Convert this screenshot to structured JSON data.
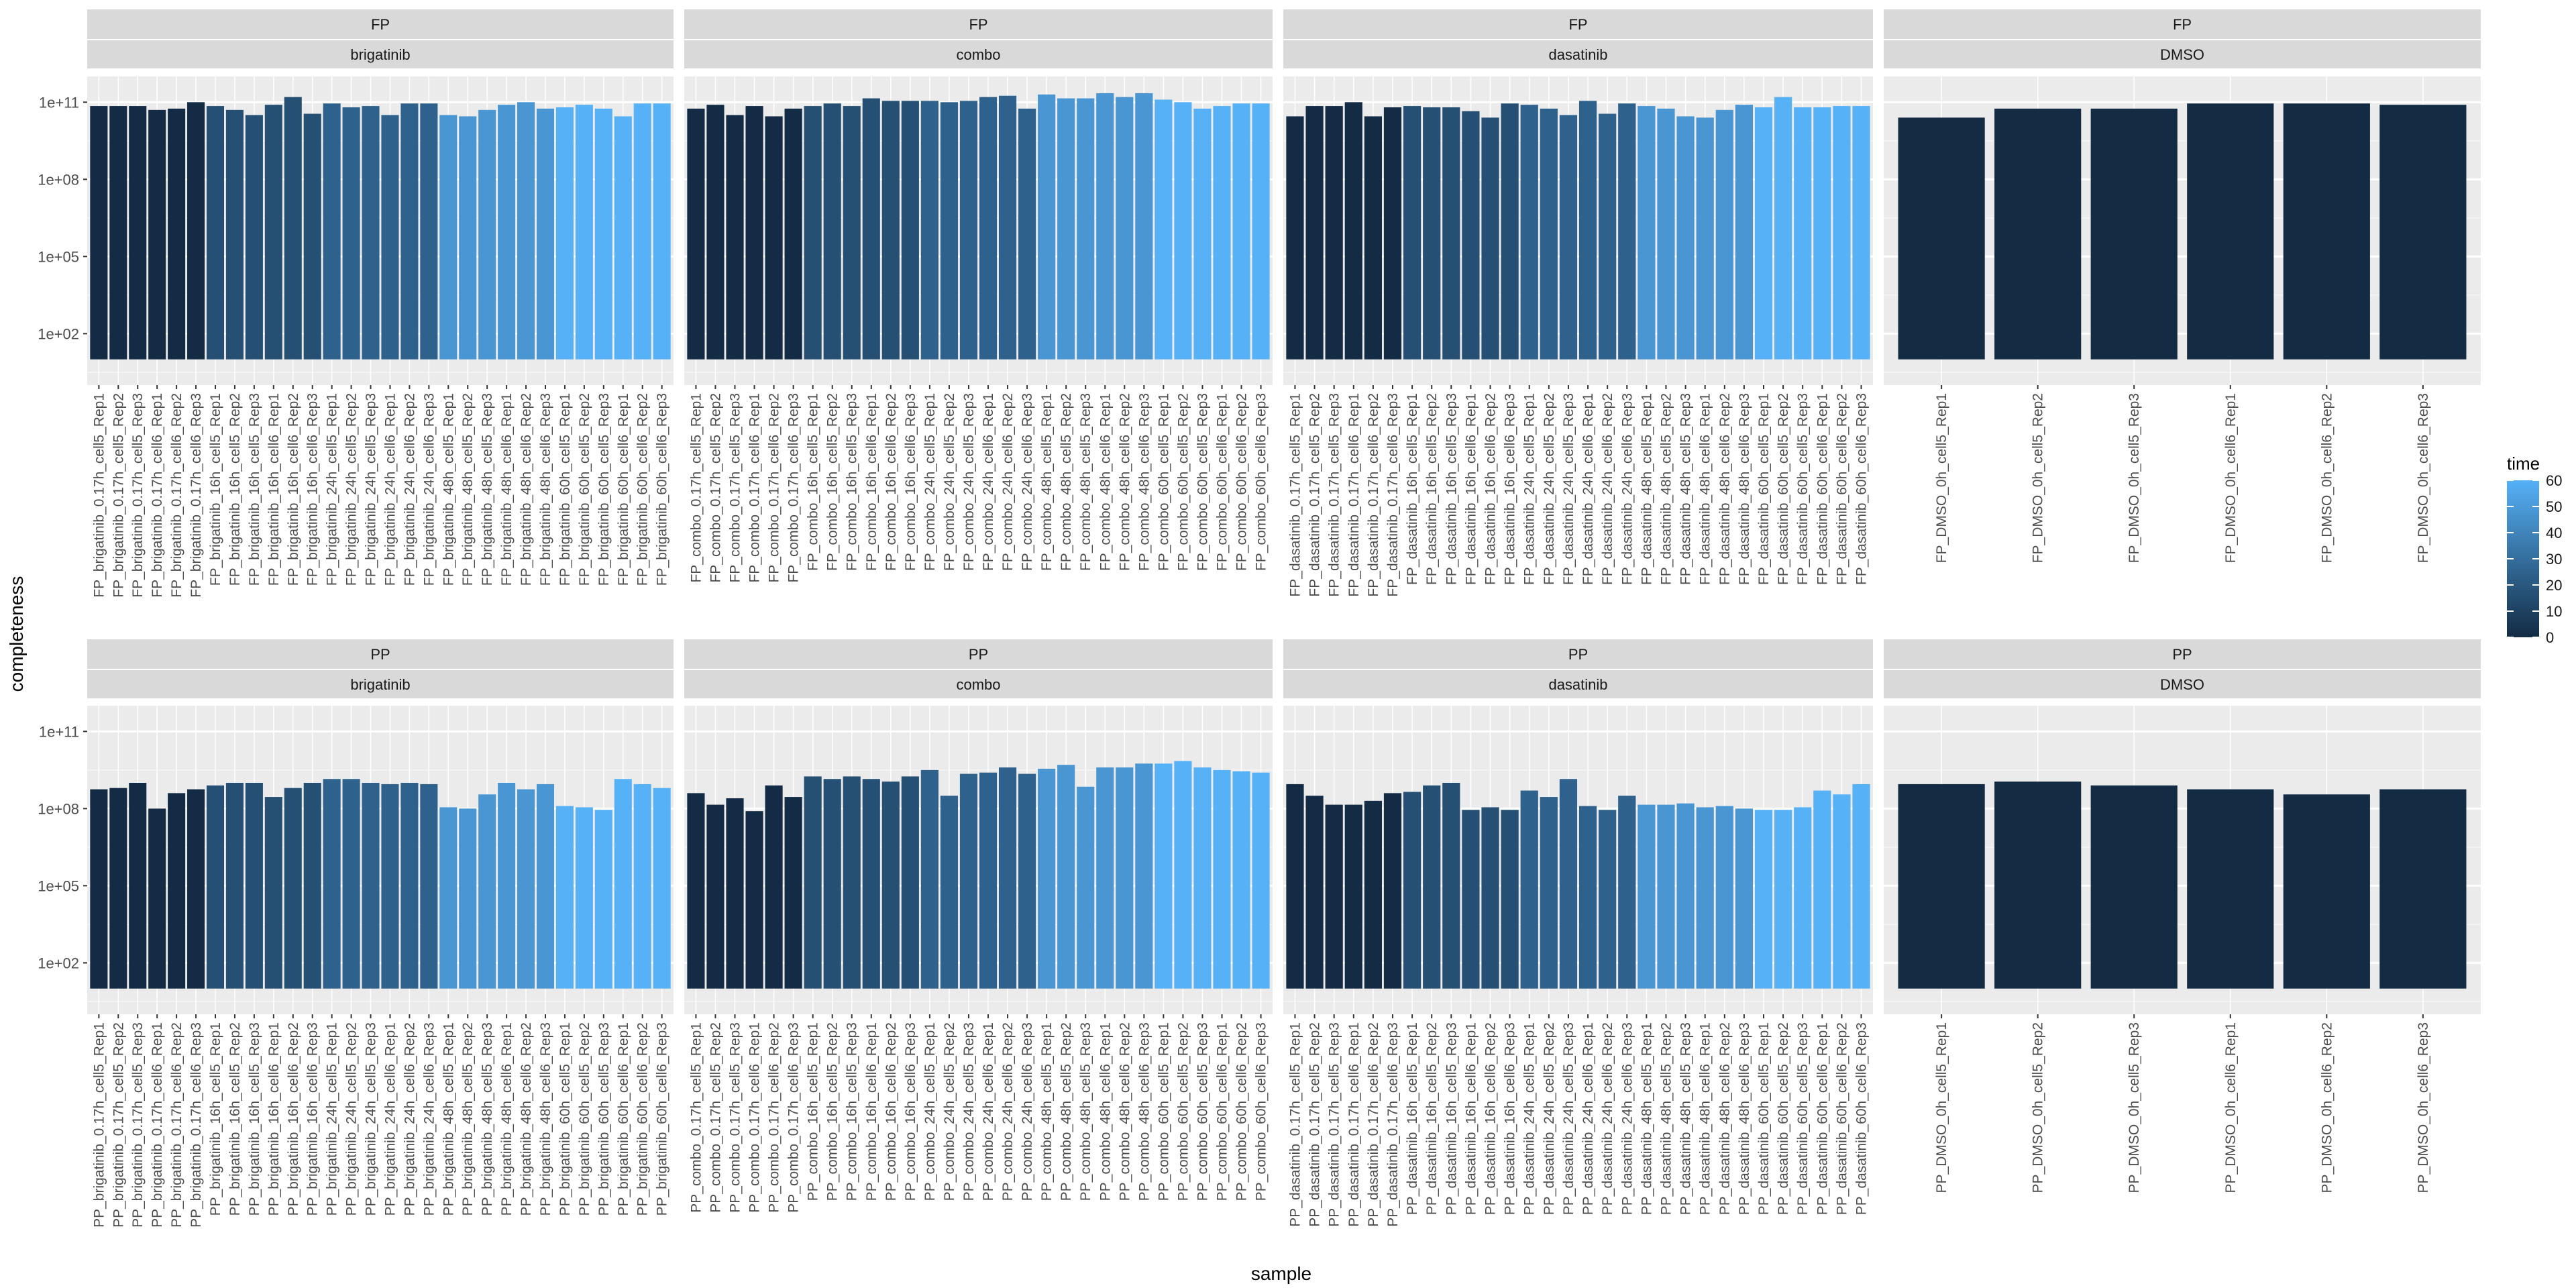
{
  "chart_data": {
    "type": "bar",
    "facet_rows": [
      "FP",
      "PP"
    ],
    "facet_cols": [
      "brigatinib",
      "combo",
      "dasatinib",
      "DMSO"
    ],
    "y_scale": "log10",
    "ylim_log10": [
      0,
      12
    ],
    "y_ticks": [
      {
        "label": "1e+02",
        "log10": 2
      },
      {
        "label": "1e+05",
        "log10": 5
      },
      {
        "label": "1e+08",
        "log10": 8
      },
      {
        "label": "1e+11",
        "log10": 11
      }
    ],
    "xlabel": "sample",
    "ylabel": "completeness",
    "legend": {
      "title": "time",
      "ticks": [
        "0",
        "10",
        "20",
        "30",
        "40",
        "50",
        "60"
      ],
      "range": [
        0,
        60
      ],
      "low_color": "#132b43",
      "high_color": "#56b1f7",
      "position": "right"
    },
    "panels": [
      {
        "row": "FP",
        "col": "brigatinib",
        "samples": [
          "FP_brigatinib_0.17h_cell5_Rep1",
          "FP_brigatinib_0.17h_cell5_Rep2",
          "FP_brigatinib_0.17h_cell5_Rep3",
          "FP_brigatinib_0.17h_cell6_Rep1",
          "FP_brigatinib_0.17h_cell6_Rep2",
          "FP_brigatinib_0.17h_cell6_Rep3",
          "FP_brigatinib_16h_cell5_Rep1",
          "FP_brigatinib_16h_cell5_Rep2",
          "FP_brigatinib_16h_cell5_Rep3",
          "FP_brigatinib_16h_cell6_Rep1",
          "FP_brigatinib_16h_cell6_Rep2",
          "FP_brigatinib_16h_cell6_Rep3",
          "FP_brigatinib_24h_cell5_Rep1",
          "FP_brigatinib_24h_cell5_Rep2",
          "FP_brigatinib_24h_cell5_Rep3",
          "FP_brigatinib_24h_cell6_Rep1",
          "FP_brigatinib_24h_cell6_Rep2",
          "FP_brigatinib_24h_cell6_Rep3",
          "FP_brigatinib_48h_cell5_Rep1",
          "FP_brigatinib_48h_cell5_Rep2",
          "FP_brigatinib_48h_cell5_Rep3",
          "FP_brigatinib_48h_cell6_Rep1",
          "FP_brigatinib_48h_cell6_Rep2",
          "FP_brigatinib_48h_cell6_Rep3",
          "FP_brigatinib_60h_cell5_Rep1",
          "FP_brigatinib_60h_cell5_Rep2",
          "FP_brigatinib_60h_cell5_Rep3",
          "FP_brigatinib_60h_cell6_Rep1",
          "FP_brigatinib_60h_cell6_Rep2",
          "FP_brigatinib_60h_cell6_Rep3"
        ],
        "time": [
          0.17,
          0.17,
          0.17,
          0.17,
          0.17,
          0.17,
          16,
          16,
          16,
          16,
          16,
          16,
          24,
          24,
          24,
          24,
          24,
          24,
          48,
          48,
          48,
          48,
          48,
          48,
          60,
          60,
          60,
          60,
          60,
          60
        ],
        "log10": [
          10.85,
          10.85,
          10.85,
          10.7,
          10.75,
          11.0,
          10.85,
          10.7,
          10.5,
          10.9,
          11.2,
          10.55,
          10.95,
          10.8,
          10.85,
          10.5,
          10.95,
          10.95,
          10.5,
          10.45,
          10.7,
          10.9,
          11.0,
          10.75,
          10.8,
          10.9,
          10.75,
          10.45,
          10.95,
          10.95
        ]
      },
      {
        "row": "FP",
        "col": "combo",
        "samples": [
          "FP_combo_0.17h_cell5_Rep1",
          "FP_combo_0.17h_cell5_Rep2",
          "FP_combo_0.17h_cell5_Rep3",
          "FP_combo_0.17h_cell6_Rep1",
          "FP_combo_0.17h_cell6_Rep2",
          "FP_combo_0.17h_cell6_Rep3",
          "FP_combo_16h_cell5_Rep1",
          "FP_combo_16h_cell5_Rep2",
          "FP_combo_16h_cell5_Rep3",
          "FP_combo_16h_cell6_Rep1",
          "FP_combo_16h_cell6_Rep2",
          "FP_combo_16h_cell6_Rep3",
          "FP_combo_24h_cell5_Rep1",
          "FP_combo_24h_cell5_Rep2",
          "FP_combo_24h_cell5_Rep3",
          "FP_combo_24h_cell6_Rep1",
          "FP_combo_24h_cell6_Rep2",
          "FP_combo_24h_cell6_Rep3",
          "FP_combo_48h_cell5_Rep1",
          "FP_combo_48h_cell5_Rep2",
          "FP_combo_48h_cell5_Rep3",
          "FP_combo_48h_cell6_Rep1",
          "FP_combo_48h_cell6_Rep2",
          "FP_combo_48h_cell6_Rep3",
          "FP_combo_60h_cell5_Rep1",
          "FP_combo_60h_cell5_Rep2",
          "FP_combo_60h_cell5_Rep3",
          "FP_combo_60h_cell6_Rep1",
          "FP_combo_60h_cell6_Rep2",
          "FP_combo_60h_cell6_Rep3"
        ],
        "time": [
          0.17,
          0.17,
          0.17,
          0.17,
          0.17,
          0.17,
          16,
          16,
          16,
          16,
          16,
          16,
          24,
          24,
          24,
          24,
          24,
          24,
          48,
          48,
          48,
          48,
          48,
          48,
          60,
          60,
          60,
          60,
          60,
          60
        ],
        "log10": [
          10.75,
          10.9,
          10.5,
          10.85,
          10.45,
          10.75,
          10.85,
          10.95,
          10.85,
          11.15,
          11.05,
          11.05,
          11.05,
          11.0,
          11.05,
          11.2,
          11.25,
          10.75,
          11.3,
          11.15,
          11.15,
          11.35,
          11.2,
          11.35,
          11.1,
          11.0,
          10.75,
          10.85,
          10.95,
          10.95
        ]
      },
      {
        "row": "FP",
        "col": "dasatinib",
        "samples": [
          "FP_dasatinib_0.17h_cell5_Rep1",
          "FP_dasatinib_0.17h_cell5_Rep2",
          "FP_dasatinib_0.17h_cell5_Rep3",
          "FP_dasatinib_0.17h_cell6_Rep1",
          "FP_dasatinib_0.17h_cell6_Rep2",
          "FP_dasatinib_0.17h_cell6_Rep3",
          "FP_dasatinib_16h_cell5_Rep1",
          "FP_dasatinib_16h_cell5_Rep2",
          "FP_dasatinib_16h_cell5_Rep3",
          "FP_dasatinib_16h_cell6_Rep1",
          "FP_dasatinib_16h_cell6_Rep2",
          "FP_dasatinib_16h_cell6_Rep3",
          "FP_dasatinib_24h_cell5_Rep1",
          "FP_dasatinib_24h_cell5_Rep2",
          "FP_dasatinib_24h_cell5_Rep3",
          "FP_dasatinib_24h_cell6_Rep1",
          "FP_dasatinib_24h_cell6_Rep2",
          "FP_dasatinib_24h_cell6_Rep3",
          "FP_dasatinib_48h_cell5_Rep1",
          "FP_dasatinib_48h_cell5_Rep2",
          "FP_dasatinib_48h_cell5_Rep3",
          "FP_dasatinib_48h_cell6_Rep1",
          "FP_dasatinib_48h_cell6_Rep2",
          "FP_dasatinib_48h_cell6_Rep3",
          "FP_dasatinib_60h_cell5_Rep1",
          "FP_dasatinib_60h_cell5_Rep2",
          "FP_dasatinib_60h_cell5_Rep3",
          "FP_dasatinib_60h_cell6_Rep1",
          "FP_dasatinib_60h_cell6_Rep2",
          "FP_dasatinib_60h_cell6_Rep3"
        ],
        "time": [
          0.17,
          0.17,
          0.17,
          0.17,
          0.17,
          0.17,
          16,
          16,
          16,
          16,
          16,
          16,
          24,
          24,
          24,
          24,
          24,
          24,
          48,
          48,
          48,
          48,
          48,
          48,
          60,
          60,
          60,
          60,
          60,
          60
        ],
        "log10": [
          10.45,
          10.85,
          10.85,
          11.0,
          10.45,
          10.8,
          10.85,
          10.8,
          10.8,
          10.65,
          10.4,
          10.95,
          10.9,
          10.75,
          10.5,
          11.05,
          10.55,
          10.95,
          10.85,
          10.75,
          10.45,
          10.4,
          10.7,
          10.9,
          10.8,
          11.2,
          10.8,
          10.8,
          10.85,
          10.85
        ]
      },
      {
        "row": "FP",
        "col": "DMSO",
        "samples": [
          "FP_DMSO_0h_cell5_Rep1",
          "FP_DMSO_0h_cell5_Rep2",
          "FP_DMSO_0h_cell5_Rep3",
          "FP_DMSO_0h_cell6_Rep1",
          "FP_DMSO_0h_cell6_Rep2",
          "FP_DMSO_0h_cell6_Rep3"
        ],
        "time": [
          0,
          0,
          0,
          0,
          0,
          0
        ],
        "log10": [
          10.4,
          10.75,
          10.75,
          10.95,
          10.95,
          10.9
        ]
      },
      {
        "row": "PP",
        "col": "brigatinib",
        "samples": [
          "PP_brigatinib_0.17h_cell5_Rep1",
          "PP_brigatinib_0.17h_cell5_Rep2",
          "PP_brigatinib_0.17h_cell5_Rep3",
          "PP_brigatinib_0.17h_cell6_Rep1",
          "PP_brigatinib_0.17h_cell6_Rep2",
          "PP_brigatinib_0.17h_cell6_Rep3",
          "PP_brigatinib_16h_cell5_Rep1",
          "PP_brigatinib_16h_cell5_Rep2",
          "PP_brigatinib_16h_cell5_Rep3",
          "PP_brigatinib_16h_cell6_Rep1",
          "PP_brigatinib_16h_cell6_Rep2",
          "PP_brigatinib_16h_cell6_Rep3",
          "PP_brigatinib_24h_cell5_Rep1",
          "PP_brigatinib_24h_cell5_Rep2",
          "PP_brigatinib_24h_cell5_Rep3",
          "PP_brigatinib_24h_cell6_Rep1",
          "PP_brigatinib_24h_cell6_Rep2",
          "PP_brigatinib_24h_cell6_Rep3",
          "PP_brigatinib_48h_cell5_Rep1",
          "PP_brigatinib_48h_cell5_Rep2",
          "PP_brigatinib_48h_cell5_Rep3",
          "PP_brigatinib_48h_cell6_Rep1",
          "PP_brigatinib_48h_cell6_Rep2",
          "PP_brigatinib_48h_cell6_Rep3",
          "PP_brigatinib_60h_cell5_Rep1",
          "PP_brigatinib_60h_cell5_Rep2",
          "PP_brigatinib_60h_cell5_Rep3",
          "PP_brigatinib_60h_cell6_Rep1",
          "PP_brigatinib_60h_cell6_Rep2",
          "PP_brigatinib_60h_cell6_Rep3"
        ],
        "time": [
          0.17,
          0.17,
          0.17,
          0.17,
          0.17,
          0.17,
          16,
          16,
          16,
          16,
          16,
          16,
          24,
          24,
          24,
          24,
          24,
          24,
          48,
          48,
          48,
          48,
          48,
          48,
          60,
          60,
          60,
          60,
          60,
          60
        ],
        "log10": [
          8.75,
          8.8,
          9.0,
          8.0,
          8.6,
          8.75,
          8.9,
          9.0,
          9.0,
          8.45,
          8.8,
          9.0,
          9.15,
          9.15,
          9.0,
          8.95,
          9.0,
          8.95,
          8.05,
          8.0,
          8.55,
          9.0,
          8.75,
          8.95,
          8.1,
          8.05,
          7.95,
          9.15,
          8.95,
          8.8
        ]
      },
      {
        "row": "PP",
        "col": "combo",
        "samples": [
          "PP_combo_0.17h_cell5_Rep1",
          "PP_combo_0.17h_cell5_Rep2",
          "PP_combo_0.17h_cell5_Rep3",
          "PP_combo_0.17h_cell6_Rep1",
          "PP_combo_0.17h_cell6_Rep2",
          "PP_combo_0.17h_cell6_Rep3",
          "PP_combo_16h_cell5_Rep1",
          "PP_combo_16h_cell5_Rep2",
          "PP_combo_16h_cell5_Rep3",
          "PP_combo_16h_cell6_Rep1",
          "PP_combo_16h_cell6_Rep2",
          "PP_combo_16h_cell6_Rep3",
          "PP_combo_24h_cell5_Rep1",
          "PP_combo_24h_cell5_Rep2",
          "PP_combo_24h_cell5_Rep3",
          "PP_combo_24h_cell6_Rep1",
          "PP_combo_24h_cell6_Rep2",
          "PP_combo_24h_cell6_Rep3",
          "PP_combo_48h_cell5_Rep1",
          "PP_combo_48h_cell5_Rep2",
          "PP_combo_48h_cell5_Rep3",
          "PP_combo_48h_cell6_Rep1",
          "PP_combo_48h_cell6_Rep2",
          "PP_combo_48h_cell6_Rep3",
          "PP_combo_60h_cell5_Rep1",
          "PP_combo_60h_cell5_Rep2",
          "PP_combo_60h_cell5_Rep3",
          "PP_combo_60h_cell6_Rep1",
          "PP_combo_60h_cell6_Rep2",
          "PP_combo_60h_cell6_Rep3"
        ],
        "time": [
          0.17,
          0.17,
          0.17,
          0.17,
          0.17,
          0.17,
          16,
          16,
          16,
          16,
          16,
          16,
          24,
          24,
          24,
          24,
          24,
          24,
          48,
          48,
          48,
          48,
          48,
          48,
          60,
          60,
          60,
          60,
          60,
          60
        ],
        "log10": [
          8.6,
          8.15,
          8.4,
          7.9,
          8.9,
          8.45,
          9.25,
          9.15,
          9.25,
          9.15,
          9.05,
          9.25,
          9.5,
          8.5,
          9.35,
          9.4,
          9.6,
          9.35,
          9.55,
          9.7,
          8.85,
          9.6,
          9.6,
          9.75,
          9.75,
          9.85,
          9.6,
          9.5,
          9.45,
          9.4
        ]
      },
      {
        "row": "PP",
        "col": "dasatinib",
        "samples": [
          "PP_dasatinib_0.17h_cell5_Rep1",
          "PP_dasatinib_0.17h_cell5_Rep2",
          "PP_dasatinib_0.17h_cell5_Rep3",
          "PP_dasatinib_0.17h_cell6_Rep1",
          "PP_dasatinib_0.17h_cell6_Rep2",
          "PP_dasatinib_0.17h_cell6_Rep3",
          "PP_dasatinib_16h_cell5_Rep1",
          "PP_dasatinib_16h_cell5_Rep2",
          "PP_dasatinib_16h_cell5_Rep3",
          "PP_dasatinib_16h_cell6_Rep1",
          "PP_dasatinib_16h_cell6_Rep2",
          "PP_dasatinib_16h_cell6_Rep3",
          "PP_dasatinib_24h_cell5_Rep1",
          "PP_dasatinib_24h_cell5_Rep2",
          "PP_dasatinib_24h_cell5_Rep3",
          "PP_dasatinib_24h_cell6_Rep1",
          "PP_dasatinib_24h_cell6_Rep2",
          "PP_dasatinib_24h_cell6_Rep3",
          "PP_dasatinib_48h_cell5_Rep1",
          "PP_dasatinib_48h_cell5_Rep2",
          "PP_dasatinib_48h_cell5_Rep3",
          "PP_dasatinib_48h_cell6_Rep1",
          "PP_dasatinib_48h_cell6_Rep2",
          "PP_dasatinib_48h_cell6_Rep3",
          "PP_dasatinib_60h_cell5_Rep1",
          "PP_dasatinib_60h_cell5_Rep2",
          "PP_dasatinib_60h_cell5_Rep3",
          "PP_dasatinib_60h_cell6_Rep1",
          "PP_dasatinib_60h_cell6_Rep2",
          "PP_dasatinib_60h_cell6_Rep3"
        ],
        "time": [
          0.17,
          0.17,
          0.17,
          0.17,
          0.17,
          0.17,
          16,
          16,
          16,
          16,
          16,
          16,
          24,
          24,
          24,
          24,
          24,
          24,
          48,
          48,
          48,
          48,
          48,
          48,
          60,
          60,
          60,
          60,
          60,
          60
        ],
        "log10": [
          8.95,
          8.5,
          8.15,
          8.15,
          8.3,
          8.6,
          8.65,
          8.9,
          9.0,
          7.95,
          8.05,
          7.95,
          8.7,
          8.45,
          9.15,
          8.1,
          7.95,
          8.5,
          8.15,
          8.15,
          8.2,
          8.05,
          8.1,
          8.0,
          7.95,
          7.95,
          8.05,
          8.7,
          8.55,
          8.95
        ]
      },
      {
        "row": "PP",
        "col": "DMSO",
        "samples": [
          "PP_DMSO_0h_cell5_Rep1",
          "PP_DMSO_0h_cell5_Rep2",
          "PP_DMSO_0h_cell5_Rep3",
          "PP_DMSO_0h_cell6_Rep1",
          "PP_DMSO_0h_cell6_Rep2",
          "PP_DMSO_0h_cell6_Rep3"
        ],
        "time": [
          0,
          0,
          0,
          0,
          0,
          0
        ],
        "log10": [
          8.95,
          9.05,
          8.9,
          8.75,
          8.55,
          8.75
        ]
      }
    ]
  }
}
